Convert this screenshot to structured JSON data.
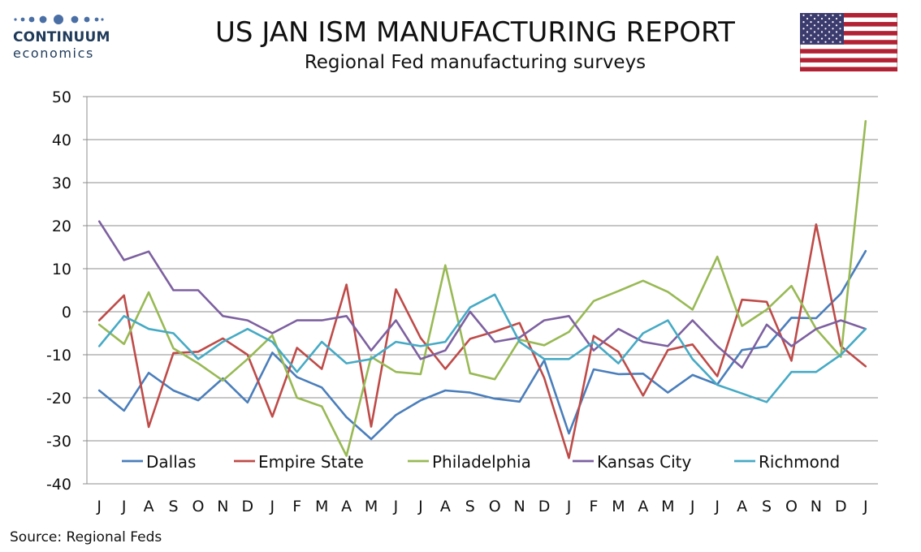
{
  "logo": {
    "name": "CONTINUUM",
    "sub": "economics",
    "color": "#1f3a5a"
  },
  "header": {
    "title": "US JAN ISM MANUFACTURING REPORT",
    "subtitle": "Regional Fed manufacturing surveys"
  },
  "flag": {
    "icon": "us-flag-icon"
  },
  "source": "Source: Regional Feds",
  "chart_data": {
    "type": "line",
    "ylim": [
      -40,
      50
    ],
    "yticks": [
      50,
      40,
      30,
      20,
      10,
      0,
      -10,
      -20,
      -30,
      -40
    ],
    "categories": [
      "J",
      "J",
      "A",
      "S",
      "O",
      "N",
      "D",
      "J",
      "F",
      "M",
      "A",
      "M",
      "J",
      "J",
      "A",
      "S",
      "O",
      "N",
      "D",
      "J",
      "F",
      "M",
      "A",
      "M",
      "J",
      "J",
      "A",
      "S",
      "O",
      "N",
      "D",
      "J"
    ],
    "grid": true,
    "legend": "bottom-inside",
    "series": [
      {
        "name": "Dallas",
        "color": "#4a7ebb",
        "values": [
          -18.3,
          -23,
          -14.2,
          -18.3,
          -20.6,
          -15.5,
          -21.1,
          -9.5,
          -15.2,
          -17.6,
          -24.5,
          -29.6,
          -24,
          -20.6,
          -18.3,
          -18.8,
          -20.2,
          -20.9,
          -11.3,
          -28.3,
          -13.4,
          -14.5,
          -14.4,
          -18.8,
          -14.7,
          -16.9,
          -8.9,
          -8.1,
          -1.4,
          -1.5,
          4.2,
          14.1
        ]
      },
      {
        "name": "Empire State",
        "color": "#be4b48",
        "values": [
          -2,
          3.8,
          -26.8,
          -9.6,
          -9.3,
          -6.2,
          -10,
          -24.4,
          -8.4,
          -13.3,
          6.3,
          -26.7,
          5.2,
          -6.1,
          -13.3,
          -6.3,
          -4.6,
          -2.6,
          -15.4,
          -34,
          -5.6,
          -9.3,
          -19.5,
          -8.9,
          -7.6,
          -15,
          2.8,
          2.3,
          -11.4,
          20.3,
          -8,
          -12.7
        ]
      },
      {
        "name": "Philadelphia",
        "color": "#98b954",
        "values": [
          -3,
          -7.5,
          4.5,
          -8.5,
          -12,
          -16,
          -11,
          -5.5,
          -20,
          -22,
          -33.5,
          -10.5,
          -14,
          -14.5,
          10.8,
          -14.3,
          -15.7,
          -6.5,
          -7.8,
          -4.7,
          2.5,
          4.8,
          7.2,
          4.6,
          0.5,
          12.8,
          -3.3,
          0.5,
          6,
          -4,
          -10.5,
          44.3
        ]
      },
      {
        "name": "Kansas City",
        "color": "#7d60a0",
        "values": [
          21,
          12,
          14,
          5,
          5,
          -1,
          -2,
          -5,
          -2,
          -2,
          -1,
          -9,
          -2,
          -11,
          -9,
          0,
          -7,
          -6,
          -2,
          -1,
          -9,
          -4,
          -7,
          -8,
          -2,
          -8,
          -13,
          -3,
          -8,
          -4,
          -2,
          -4
        ]
      },
      {
        "name": "Richmond",
        "color": "#46aac5",
        "values": [
          -8,
          -1,
          -4,
          -5,
          -11,
          -7,
          -4,
          -7,
          -14,
          -7,
          -12,
          -11,
          -7,
          -8,
          -7,
          1,
          4,
          -7,
          -11,
          -11,
          -7,
          -12,
          -5,
          -2,
          -11,
          -17,
          -19,
          -21,
          -14,
          -14,
          -10,
          -4
        ]
      }
    ]
  }
}
